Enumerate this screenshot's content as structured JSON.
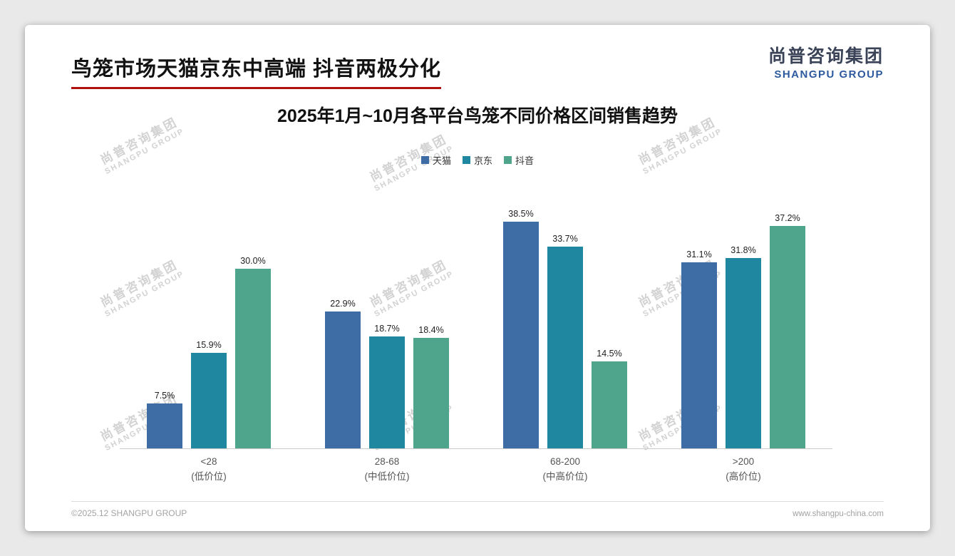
{
  "page": {
    "title": "鸟笼市场天猫京东中高端 抖音两极分化",
    "footer_left": "©2025.12 SHANGPU GROUP",
    "footer_right": "www.shangpu-china.com"
  },
  "logo": {
    "cn": "尚普咨询集团",
    "en": "SHANGPU GROUP"
  },
  "watermark": {
    "cn": "尚普咨询集团",
    "en": "SHANGPU GROUP"
  },
  "colors": {
    "tmall": "#3e6da5",
    "jd": "#1f87a0",
    "douyin": "#4ea58b",
    "title_underline": "#b01010",
    "logo_blue": "#2d5a9e"
  },
  "chart_data": {
    "type": "bar",
    "title": "2025年1月~10月各平台鸟笼不同价格区间销售趋势",
    "categories": [
      {
        "label": "<28",
        "sublabel": "(低价位)"
      },
      {
        "label": "28-68",
        "sublabel": "(中低价位)"
      },
      {
        "label": "68-200",
        "sublabel": "(中高价位)"
      },
      {
        "label": ">200",
        "sublabel": "(高价位)"
      }
    ],
    "series": [
      {
        "name": "天猫",
        "color": "#3e6da5",
        "values": [
          7.5,
          22.9,
          38.5,
          31.1
        ]
      },
      {
        "name": "京东",
        "color": "#1f87a0",
        "values": [
          15.9,
          18.7,
          33.7,
          31.8
        ]
      },
      {
        "name": "抖音",
        "color": "#4ea58b",
        "values": [
          30.0,
          18.4,
          14.5,
          37.2
        ]
      }
    ],
    "value_suffix": "%",
    "ylim": [
      0,
      40
    ],
    "grid": false,
    "legend_position": "top",
    "xlabel": "",
    "ylabel": ""
  }
}
